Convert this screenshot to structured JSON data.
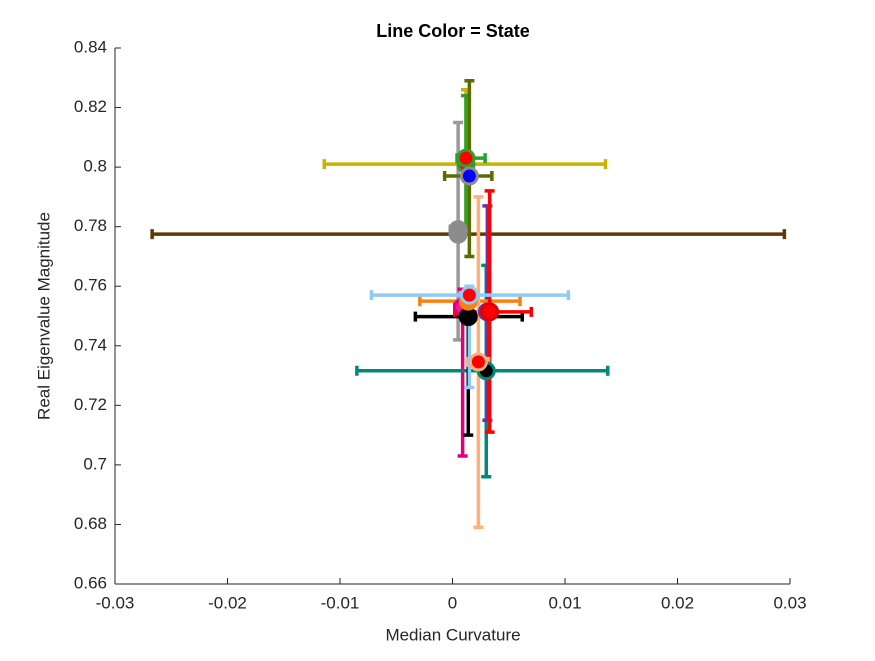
{
  "chart_data": {
    "type": "errorbar",
    "title": "Line Color = State",
    "x_label": "Median Curvature",
    "y_label": "Real Eigenvalue Magnitude",
    "xlim": [
      -0.03,
      0.03
    ],
    "ylim": [
      0.66,
      0.84
    ],
    "xticks": [
      -0.03,
      -0.02,
      -0.01,
      0,
      0.01,
      0.02,
      0.03
    ],
    "yticks": [
      0.66,
      0.68,
      0.7,
      0.72,
      0.74,
      0.76,
      0.78,
      0.8,
      0.82,
      0.84
    ],
    "points": [
      {
        "color": "#5c3a00",
        "face": "#8c8c8c",
        "edge": "#8c8c8c",
        "x": 0.0005,
        "y": 0.7775,
        "x_low": -0.0267,
        "x_high": 0.0295,
        "y_low": 0.7765,
        "y_high": 0.7785
      },
      {
        "color": "#999999",
        "face": "#8c8c8c",
        "edge": "#8c8c8c",
        "x": 0.0005,
        "y": 0.779,
        "x_low": -0.0002,
        "x_high": 0.0012,
        "y_low": 0.742,
        "y_high": 0.815
      },
      {
        "color": "#e0007e",
        "face": "#ff1493",
        "edge": "#e0007e",
        "x": 0.0009,
        "y": 0.753,
        "x_low": 0.0002,
        "x_high": 0.0016,
        "y_low": 0.703,
        "y_high": 0.759
      },
      {
        "color": "#00897b",
        "face": "#000000",
        "edge": "#00897b",
        "x": 0.003,
        "y": 0.7316,
        "x_low": -0.0085,
        "x_high": 0.0138,
        "y_low": 0.696,
        "y_high": 0.767
      },
      {
        "color": "#000000",
        "face": "#000000",
        "edge": "#000000",
        "x": 0.0014,
        "y": 0.7498,
        "x_low": -0.0033,
        "x_high": 0.0062,
        "y_low": 0.71,
        "y_high": 0.752
      },
      {
        "color": "#7030a0",
        "face": "#7030a0",
        "edge": "#7030a0",
        "x": 0.0031,
        "y": 0.7514,
        "x_low": 0.0024,
        "x_high": 0.0038,
        "y_low": 0.715,
        "y_high": 0.787
      },
      {
        "color": "#ff7f0e",
        "face": "#ff7f0e",
        "edge": "#ff7f0e",
        "x": 0.0014,
        "y": 0.755,
        "x_low": -0.0029,
        "x_high": 0.006,
        "y_low": 0.753,
        "y_high": 0.757
      },
      {
        "color": "#ff0000",
        "face": "#ff0000",
        "edge": "#e00000",
        "x": 0.0033,
        "y": 0.7514,
        "x_low": 0.0002,
        "x_high": 0.007,
        "y_low": 0.711,
        "y_high": 0.792
      },
      {
        "color": "#ffb07a",
        "face": "#ff0000",
        "edge": "#ffb07a",
        "x": 0.0023,
        "y": 0.7346,
        "x_low": 0.0013,
        "x_high": 0.0032,
        "y_low": 0.679,
        "y_high": 0.79
      },
      {
        "color": "#8ecbf5",
        "face": "#ff0000",
        "edge": "#8ecbf5",
        "x": 0.0015,
        "y": 0.757,
        "x_low": -0.0072,
        "x_high": 0.0103,
        "y_low": 0.726,
        "y_high": 0.76
      },
      {
        "color": "#c8b400",
        "face": "#ff0000",
        "edge": "#2ca02c",
        "x": 0.0012,
        "y": 0.801,
        "x_low": -0.0114,
        "x_high": 0.0136,
        "y_low": 0.78,
        "y_high": 0.826
      },
      {
        "color": "#2ca02c",
        "face": "#ff0000",
        "edge": "#2ca02c",
        "x": 0.0012,
        "y": 0.803,
        "x_low": 0.0004,
        "x_high": 0.0029,
        "y_low": 0.78,
        "y_high": 0.824
      },
      {
        "color": "#5a6e00",
        "face": "#0000ff",
        "edge": "#8c8c8c",
        "x": 0.0015,
        "y": 0.797,
        "x_low": -0.0007,
        "x_high": 0.0035,
        "y_low": 0.77,
        "y_high": 0.829
      }
    ]
  }
}
